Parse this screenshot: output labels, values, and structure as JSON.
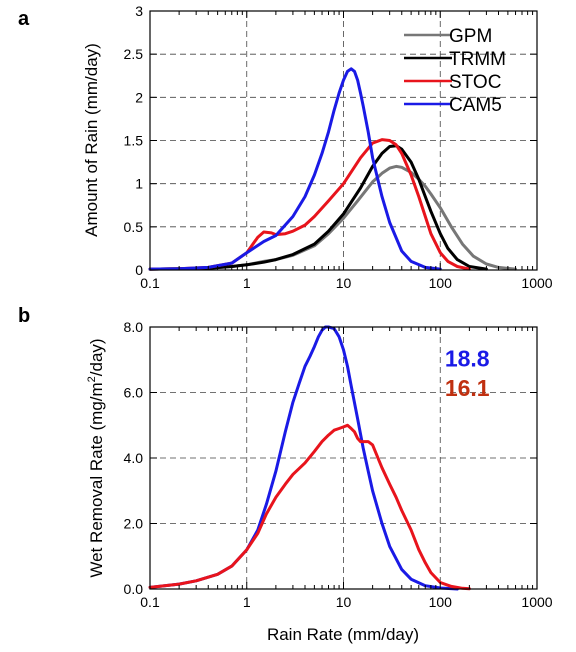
{
  "chart_data": [
    {
      "panel_label": "a",
      "type": "line",
      "x_scale": "log",
      "xlim": [
        0.1,
        1000
      ],
      "ylim": [
        0,
        3
      ],
      "xlabel": "",
      "ylabel": "Amount of Rain (mm/day)",
      "x_ticks": [
        0.1,
        1,
        10,
        100,
        1000
      ],
      "x_tick_labels": [
        "0.1",
        "1",
        "10",
        "100",
        "1000"
      ],
      "y_ticks": [
        0,
        0.5,
        1,
        1.5,
        2,
        2.5,
        3
      ],
      "y_tick_labels": [
        "0",
        "0.5",
        "1",
        "1.5",
        "2",
        "2.5",
        "3"
      ],
      "grid": true,
      "legend_position": "top-right",
      "series": [
        {
          "name": "GPM",
          "color": "#777777",
          "x": [
            0.1,
            0.2,
            0.4,
            0.7,
            1,
            1.5,
            2,
            3,
            5,
            7,
            10,
            14,
            20,
            25,
            30,
            35,
            40,
            50,
            60,
            70,
            80,
            100,
            130,
            170,
            220,
            300,
            400,
            600
          ],
          "y": [
            0.01,
            0.015,
            0.02,
            0.04,
            0.06,
            0.1,
            0.12,
            0.17,
            0.28,
            0.42,
            0.6,
            0.8,
            1.02,
            1.12,
            1.18,
            1.2,
            1.19,
            1.13,
            1.05,
            0.97,
            0.88,
            0.72,
            0.5,
            0.3,
            0.16,
            0.07,
            0.03,
            0.01
          ]
        },
        {
          "name": "TRMM",
          "color": "#000000",
          "x": [
            0.1,
            0.2,
            0.4,
            0.7,
            1,
            1.5,
            2,
            3,
            5,
            7,
            10,
            15,
            20,
            25,
            30,
            35,
            40,
            50,
            60,
            70,
            80,
            100,
            120,
            150,
            200,
            300
          ],
          "y": [
            0.01,
            0.015,
            0.02,
            0.04,
            0.06,
            0.09,
            0.12,
            0.18,
            0.3,
            0.45,
            0.65,
            0.95,
            1.2,
            1.35,
            1.43,
            1.44,
            1.4,
            1.25,
            1.05,
            0.85,
            0.68,
            0.42,
            0.25,
            0.12,
            0.04,
            0.01
          ]
        },
        {
          "name": "STOC",
          "color": "#e8141c",
          "x": [
            0.1,
            0.2,
            0.4,
            0.7,
            1,
            1.3,
            1.5,
            1.8,
            2,
            2.5,
            3,
            4,
            5,
            7,
            10,
            15,
            20,
            25,
            30,
            35,
            40,
            50,
            60,
            70,
            80,
            100,
            120,
            150,
            200
          ],
          "y": [
            0.01,
            0.015,
            0.03,
            0.08,
            0.2,
            0.38,
            0.44,
            0.43,
            0.41,
            0.42,
            0.45,
            0.52,
            0.62,
            0.8,
            1.0,
            1.3,
            1.47,
            1.51,
            1.5,
            1.45,
            1.35,
            1.1,
            0.85,
            0.62,
            0.42,
            0.2,
            0.1,
            0.04,
            0.01
          ]
        },
        {
          "name": "CAM5",
          "color": "#1a1ae6",
          "x": [
            0.1,
            0.2,
            0.4,
            0.7,
            1,
            1.5,
            2,
            3,
            4,
            5,
            6,
            7,
            8,
            9,
            10,
            11,
            12,
            13,
            14,
            15,
            16,
            18,
            20,
            25,
            30,
            40,
            50,
            70,
            100
          ],
          "y": [
            0.01,
            0.015,
            0.03,
            0.08,
            0.2,
            0.33,
            0.4,
            0.62,
            0.85,
            1.1,
            1.35,
            1.6,
            1.85,
            2.05,
            2.2,
            2.3,
            2.33,
            2.3,
            2.2,
            2.05,
            1.9,
            1.6,
            1.3,
            0.85,
            0.55,
            0.22,
            0.1,
            0.03,
            0.01
          ]
        }
      ]
    },
    {
      "panel_label": "b",
      "type": "line",
      "x_scale": "log",
      "xlim": [
        0.1,
        1000
      ],
      "ylim": [
        0,
        8
      ],
      "xlabel": "Rain Rate (mm/day)",
      "ylabel_parts": [
        "Wet Removal Rate (mg/m",
        "2",
        "/day)"
      ],
      "x_ticks": [
        0.1,
        1,
        10,
        100,
        1000
      ],
      "x_tick_labels": [
        "0.1",
        "1",
        "10",
        "100",
        "1000"
      ],
      "y_ticks": [
        0,
        2,
        4,
        6,
        8
      ],
      "y_tick_labels": [
        "0.0",
        "2.0",
        "4.0",
        "6.0",
        "8.0"
      ],
      "grid": true,
      "annotations": [
        {
          "text": "18.8",
          "color": "#1a1ae6",
          "x": 190,
          "y": 6.8
        },
        {
          "text": "16.1",
          "color": "#c03010",
          "x": 190,
          "y": 5.9
        }
      ],
      "series": [
        {
          "color": "#1a1ae6",
          "x": [
            0.1,
            0.2,
            0.3,
            0.5,
            0.7,
            1,
            1.3,
            1.6,
            2,
            2.5,
            3,
            3.5,
            4,
            4.5,
            5,
            5.5,
            6,
            6.5,
            7,
            8,
            9,
            10,
            11,
            12,
            14,
            16,
            18,
            20,
            25,
            30,
            40,
            50,
            70,
            100,
            150
          ],
          "y": [
            0.05,
            0.15,
            0.25,
            0.45,
            0.7,
            1.2,
            1.8,
            2.6,
            3.6,
            4.8,
            5.7,
            6.3,
            6.8,
            7.1,
            7.4,
            7.7,
            7.9,
            8.0,
            8.0,
            7.95,
            7.7,
            7.3,
            6.8,
            6.2,
            5.2,
            4.3,
            3.6,
            3.0,
            2.0,
            1.3,
            0.6,
            0.3,
            0.1,
            0.03,
            0.0
          ]
        },
        {
          "color": "#e8141c",
          "x": [
            0.1,
            0.2,
            0.3,
            0.5,
            0.7,
            1,
            1.3,
            1.6,
            2,
            2.5,
            3,
            4,
            5,
            6,
            7,
            8,
            9,
            10,
            11,
            12,
            13,
            14,
            15,
            16,
            18,
            20,
            22,
            25,
            30,
            35,
            40,
            50,
            60,
            70,
            80,
            100,
            130,
            170,
            200
          ],
          "y": [
            0.05,
            0.15,
            0.25,
            0.45,
            0.7,
            1.2,
            1.7,
            2.3,
            2.8,
            3.2,
            3.5,
            3.85,
            4.2,
            4.5,
            4.7,
            4.85,
            4.9,
            4.95,
            5.0,
            4.9,
            4.8,
            4.6,
            4.5,
            4.5,
            4.5,
            4.4,
            4.1,
            3.7,
            3.2,
            2.8,
            2.4,
            1.8,
            1.2,
            0.8,
            0.5,
            0.2,
            0.08,
            0.02,
            0.01
          ]
        }
      ]
    }
  ]
}
